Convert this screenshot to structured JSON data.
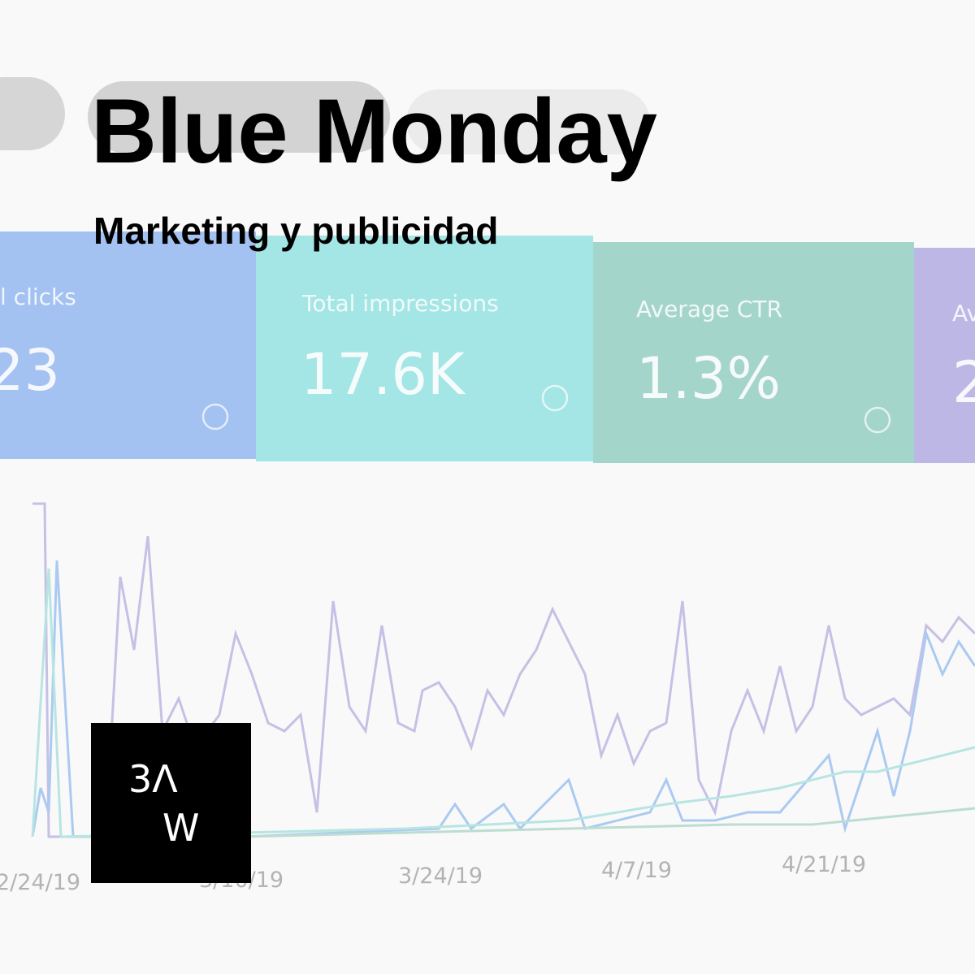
{
  "header": {
    "title": "Blue Monday",
    "subtitle": "Marketing y publicidad"
  },
  "cards": [
    {
      "label": "l clicks",
      "value": "23"
    },
    {
      "label": "Total impressions",
      "value": "17.6K"
    },
    {
      "label": "Average CTR",
      "value": "1.3%"
    },
    {
      "label": "Av",
      "value": "2"
    }
  ],
  "dates": [
    "2/24/19",
    "3/10/19",
    "3/24/19",
    "4/7/19",
    "4/21/19"
  ],
  "logo": {
    "top": "3Λ",
    "bottom": "W"
  }
}
